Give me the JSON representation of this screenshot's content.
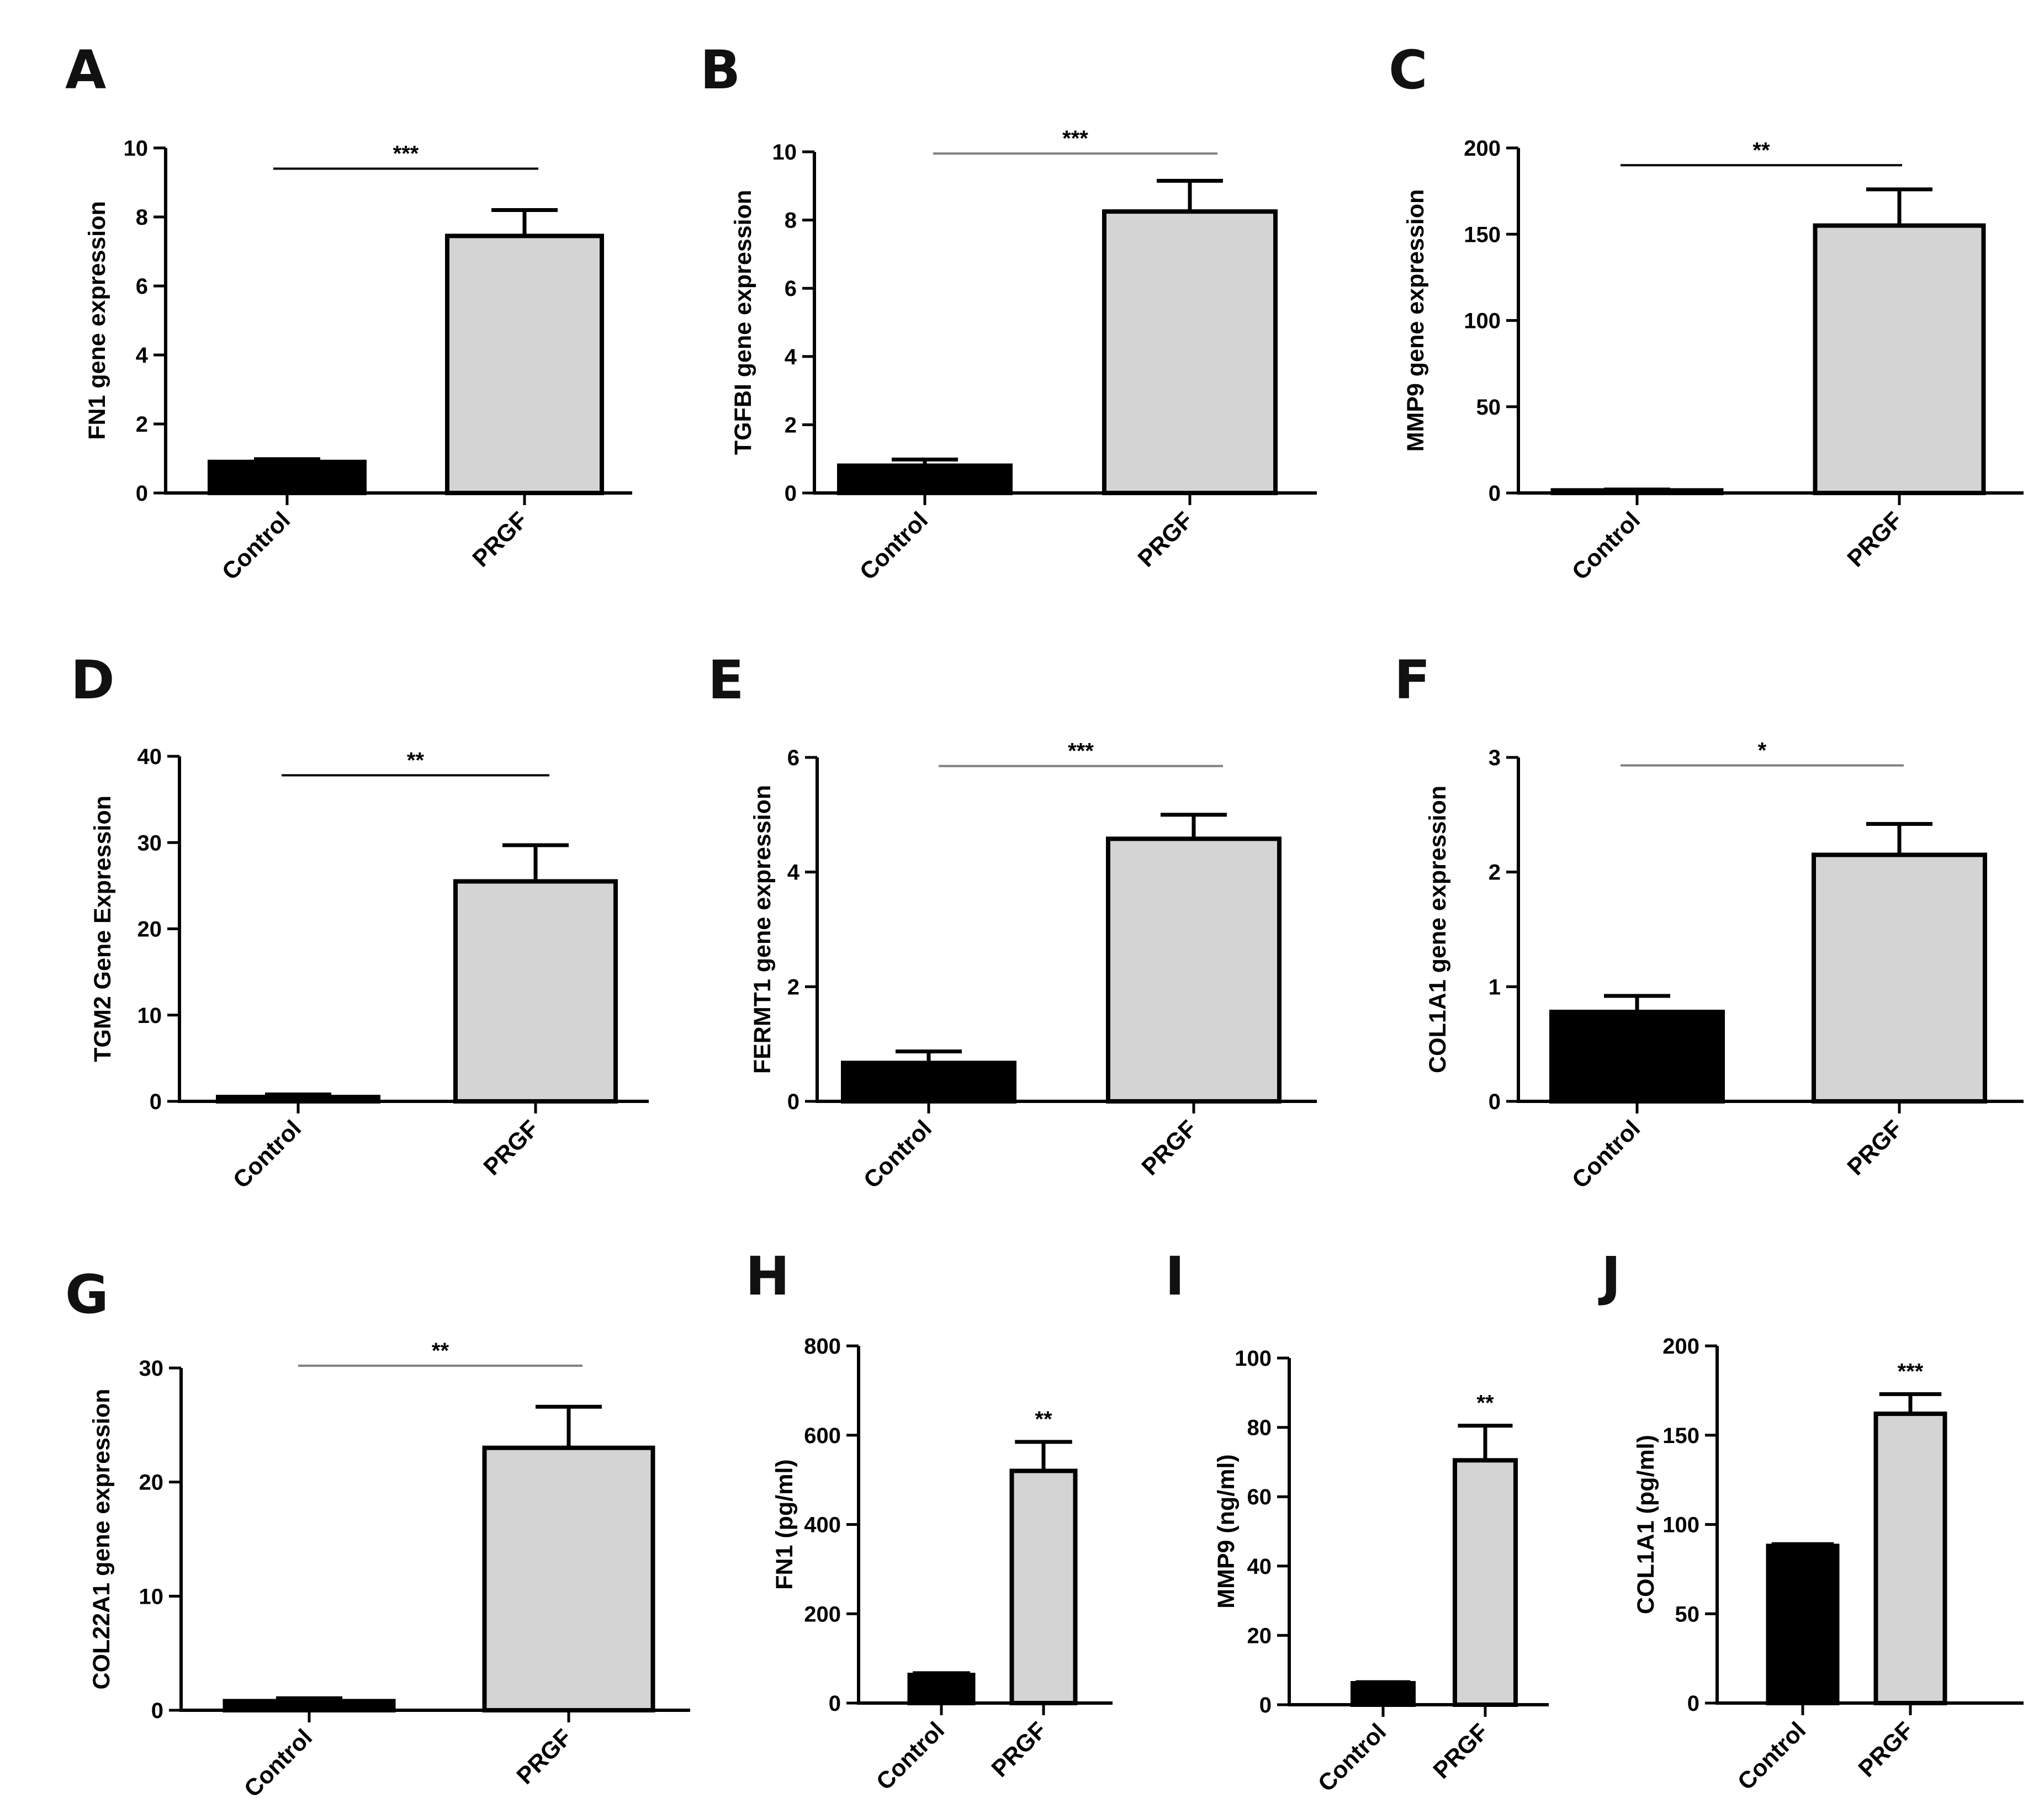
{
  "figure": {
    "categories": [
      "Control",
      "PRGF"
    ],
    "colors": {
      "control": "#000000",
      "prgf": "#d4d4d4",
      "sig_black": "#000000",
      "sig_grey": "#808080"
    }
  },
  "chart_data": [
    {
      "panel": "A",
      "type": "bar",
      "ylabel": "FN1 gene expression",
      "categories": [
        "Control",
        "PRGF"
      ],
      "values": [
        0.9,
        7.45
      ],
      "errors": [
        0.08,
        0.75
      ],
      "ylim": [
        0,
        10
      ],
      "yticks": [
        0,
        2,
        4,
        6,
        8,
        10
      ],
      "significance": "***",
      "sig_style": "bracket",
      "sig_y": 9.4,
      "sig_color": "black"
    },
    {
      "panel": "B",
      "type": "bar",
      "ylabel": "TGFBI gene expression",
      "categories": [
        "Control",
        "PRGF"
      ],
      "values": [
        0.8,
        8.25
      ],
      "errors": [
        0.18,
        0.9
      ],
      "ylim": [
        0,
        10
      ],
      "yticks": [
        0,
        2,
        4,
        6,
        8,
        10
      ],
      "significance": "***",
      "sig_style": "bracket",
      "sig_y": 9.95,
      "sig_color": "grey"
    },
    {
      "panel": "C",
      "type": "bar",
      "ylabel": "MMP9 gene expression",
      "categories": [
        "Control",
        "PRGF"
      ],
      "values": [
        1.5,
        155
      ],
      "errors": [
        0.5,
        21
      ],
      "ylim": [
        0,
        200
      ],
      "yticks": [
        0,
        50,
        100,
        150,
        200
      ],
      "significance": "**",
      "sig_style": "bracket",
      "sig_y": 190,
      "sig_color": "black"
    },
    {
      "panel": "D",
      "type": "bar",
      "ylabel": "TGM2 Gene Expression",
      "categories": [
        "Control",
        "PRGF"
      ],
      "values": [
        0.5,
        25.5
      ],
      "errors": [
        0.3,
        4.2
      ],
      "ylim": [
        0,
        40
      ],
      "yticks": [
        0,
        10,
        20,
        30,
        40
      ],
      "significance": "**",
      "sig_style": "bracket",
      "sig_y": 37.8,
      "sig_color": "black"
    },
    {
      "panel": "E",
      "type": "bar",
      "ylabel": "FERMT1 gene expression",
      "categories": [
        "Control",
        "PRGF"
      ],
      "values": [
        0.67,
        4.58
      ],
      "errors": [
        0.2,
        0.42
      ],
      "ylim": [
        0,
        6
      ],
      "yticks": [
        0,
        2,
        4,
        6
      ],
      "significance": "***",
      "sig_style": "bracket",
      "sig_y": 5.85,
      "sig_color": "grey"
    },
    {
      "panel": "F",
      "type": "bar",
      "ylabel": "COL1A1 gene expression",
      "categories": [
        "Control",
        "PRGF"
      ],
      "values": [
        0.78,
        2.15
      ],
      "errors": [
        0.14,
        0.27
      ],
      "ylim": [
        0,
        3
      ],
      "yticks": [
        0,
        1,
        2,
        3
      ],
      "significance": "*",
      "sig_style": "bracket",
      "sig_y": 2.93,
      "sig_color": "grey"
    },
    {
      "panel": "G",
      "type": "bar",
      "ylabel": "COL22A1 gene expression",
      "categories": [
        "Control",
        "PRGF"
      ],
      "values": [
        0.8,
        23
      ],
      "errors": [
        0.25,
        3.6
      ],
      "ylim": [
        0,
        30
      ],
      "yticks": [
        0,
        10,
        20,
        30
      ],
      "significance": "**",
      "sig_style": "bracket",
      "sig_y": 30.2,
      "sig_color": "grey"
    },
    {
      "panel": "H",
      "type": "bar",
      "ylabel": "FN1 (pg/ml)",
      "categories": [
        "Control",
        "PRGF"
      ],
      "values": [
        63,
        520
      ],
      "errors": [
        4,
        65
      ],
      "ylim": [
        0,
        800
      ],
      "yticks": [
        0,
        200,
        400,
        600,
        800
      ],
      "significance": "**",
      "sig_style": "above",
      "sig_color": "black"
    },
    {
      "panel": "I",
      "type": "bar",
      "ylabel": "MMP9 (ng/ml)",
      "categories": [
        "Control",
        "PRGF"
      ],
      "values": [
        6.2,
        70.5
      ],
      "errors": [
        0.3,
        10
      ],
      "ylim": [
        0,
        100
      ],
      "yticks": [
        0,
        20,
        40,
        60,
        80,
        100
      ],
      "significance": "**",
      "sig_style": "above",
      "sig_color": "black"
    },
    {
      "panel": "J",
      "type": "bar",
      "ylabel": "COL1A1 (pg/ml)",
      "categories": [
        "Control",
        "PRGF"
      ],
      "values": [
        88,
        162
      ],
      "errors": [
        1,
        11
      ],
      "ylim": [
        0,
        200
      ],
      "yticks": [
        0,
        50,
        100,
        150,
        200
      ],
      "significance": "***",
      "sig_style": "above",
      "sig_color": "black"
    }
  ]
}
